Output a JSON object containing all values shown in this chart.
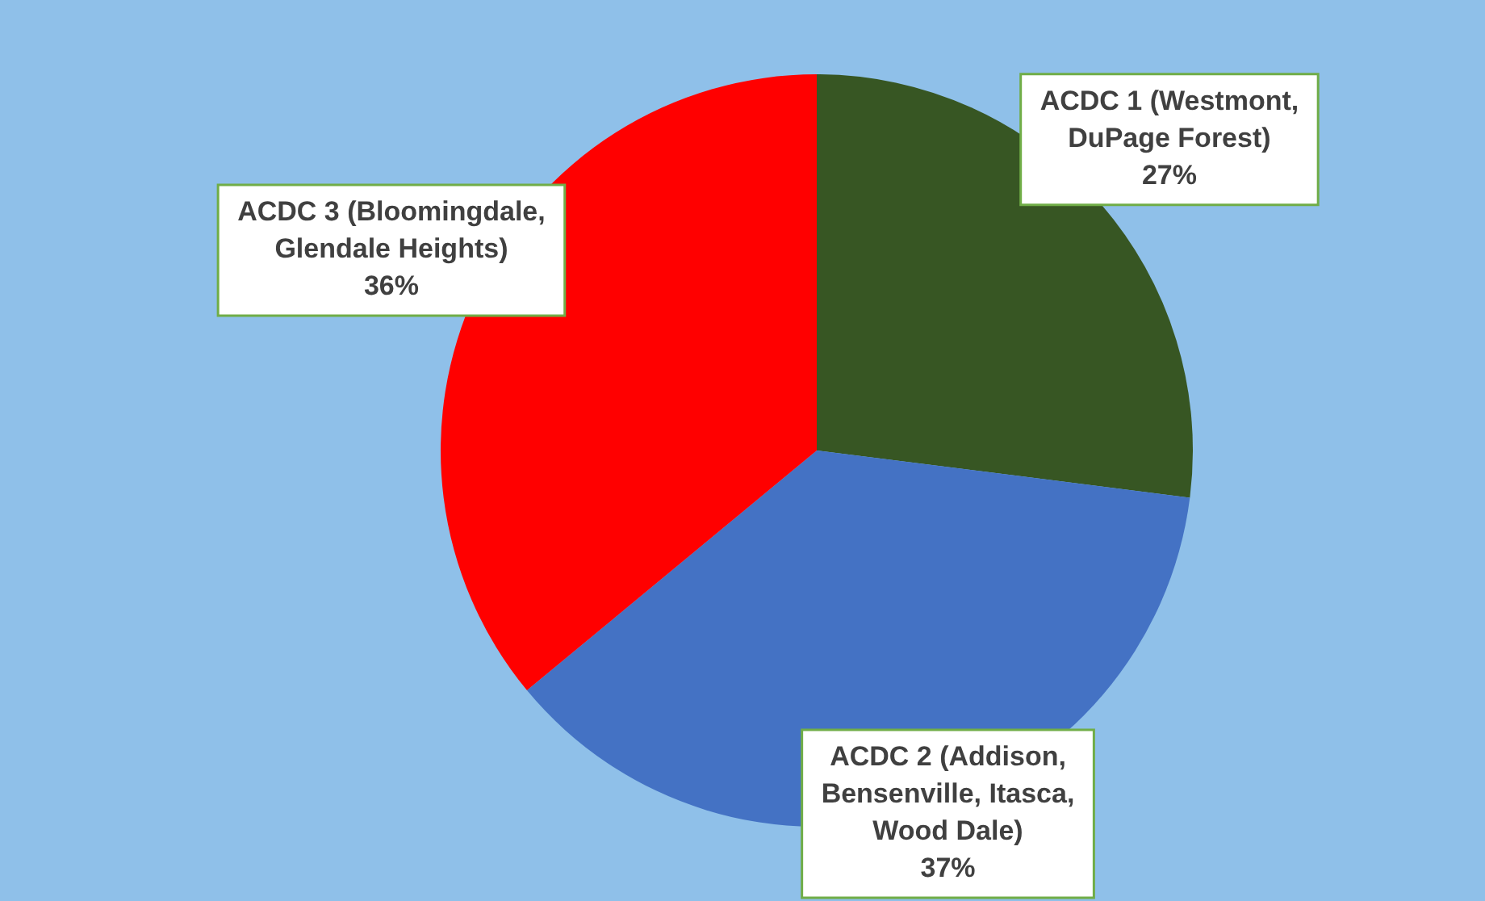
{
  "chart_data": {
    "type": "pie",
    "categories": [
      "ACDC 1 (Westmont, DuPage Forest)",
      "ACDC 2 (Addison, Bensenville, Itasca, Wood Dale)",
      "ACDC 3 (Bloomingdale, Glendale Heights)"
    ],
    "values": [
      27,
      37,
      36
    ],
    "colors": [
      "#375623",
      "#4472c4",
      "#ff0000"
    ],
    "value_labels": [
      "27%",
      "37%",
      "36%"
    ],
    "legend": false
  }
}
